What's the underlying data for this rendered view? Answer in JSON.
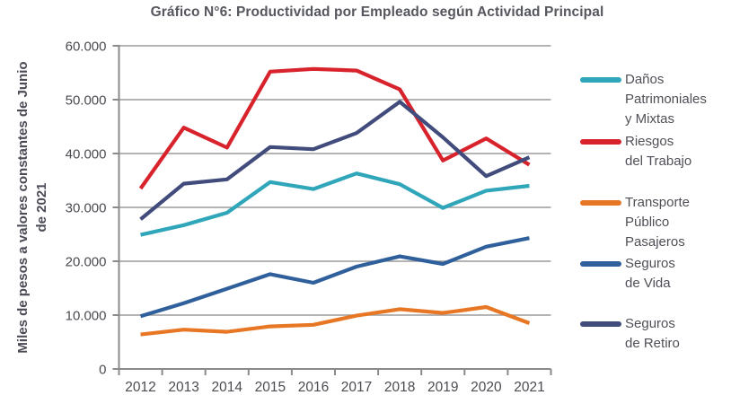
{
  "title": "Gráfico N°6: Productividad por Empleado según Actividad Principal",
  "colors": {
    "background": "#FFFFFF",
    "title_text": "#55565E",
    "axis_text": "#4B4B52",
    "legend_text": "#4F5057",
    "grid": "#9C9C9C",
    "axis": "#8A8A8A"
  },
  "chart_data": {
    "type": "line",
    "x": [
      2012,
      2013,
      2014,
      2015,
      2016,
      2017,
      2018,
      2019,
      2020,
      2021
    ],
    "series": [
      {
        "name": "Daños Patrimoniales y Mixtas",
        "legend_lines": [
          "Daños",
          "Patrimoniales",
          "y Mixtas"
        ],
        "color": "#2FA6B9",
        "values": [
          24900,
          26700,
          29000,
          34700,
          33400,
          36300,
          34300,
          29900,
          33100,
          34000
        ]
      },
      {
        "name": "Riesgos del Trabajo",
        "legend_lines": [
          "Riesgos",
          "del Trabajo"
        ],
        "color": "#D8222C",
        "values": [
          33500,
          44800,
          41100,
          55200,
          55700,
          55400,
          51900,
          38700,
          42800,
          37900
        ]
      },
      {
        "name": "Transporte Público Pasajeros",
        "legend_lines": [
          "Transporte",
          "Público",
          "Pasajeros"
        ],
        "color": "#E87725",
        "values": [
          6400,
          7300,
          6900,
          7900,
          8200,
          9900,
          11100,
          10400,
          11500,
          8500
        ]
      },
      {
        "name": "Seguros de Vida",
        "legend_lines": [
          "Seguros",
          "de Vida"
        ],
        "color": "#30609C",
        "values": [
          9800,
          12200,
          14900,
          17600,
          16000,
          19000,
          20900,
          19500,
          22700,
          24300
        ]
      },
      {
        "name": "Seguros de Retiro",
        "legend_lines": [
          "Seguros",
          "de Retiro"
        ],
        "color": "#424C7C",
        "values": [
          27800,
          34400,
          35200,
          41200,
          40800,
          43800,
          49600,
          43000,
          35800,
          39300
        ]
      }
    ],
    "ylabel": "Miles de pesos a valores constantes de Junio de 2021",
    "ylabel_lines": [
      "Miles de pesos a valores constantes de Junio",
      "de 2021"
    ],
    "ylim": [
      0,
      60000
    ],
    "ytick_step": 10000,
    "ytick_labels": [
      "0",
      "10.000",
      "20.000",
      "30.000",
      "40.000",
      "50.000",
      "60.000"
    ],
    "grid": true,
    "legend_position": "right"
  }
}
